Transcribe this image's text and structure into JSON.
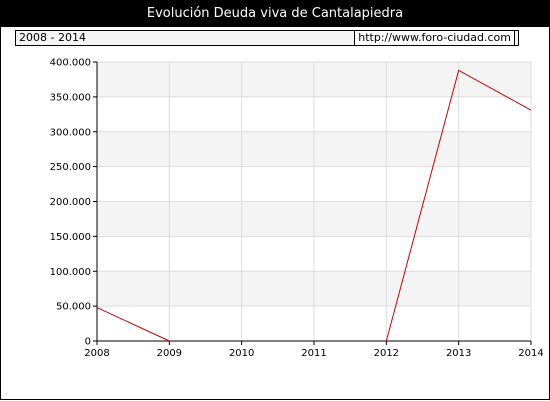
{
  "header": {
    "title": "Evolución Deuda viva de Cantalapiedra"
  },
  "info": {
    "period": "2008 - 2014",
    "source": "http://www.foro-ciudad.com"
  },
  "colors": {
    "title_bg": "#000000",
    "line": "#cc0000",
    "band": "#f4f4f4",
    "grid": "#dddddd"
  },
  "chart_data": {
    "type": "line",
    "title": "Evolución Deuda viva de Cantalapiedra",
    "xlabel": "",
    "ylabel": "",
    "categories": [
      "2008",
      "2009",
      "2010",
      "2011",
      "2012",
      "2013",
      "2014"
    ],
    "ylim": [
      0,
      400000
    ],
    "yticks": [
      0,
      50000,
      100000,
      150000,
      200000,
      250000,
      300000,
      350000,
      400000
    ],
    "ytick_labels": [
      "0",
      "50.000",
      "100.000",
      "150.000",
      "200.000",
      "250.000",
      "300.000",
      "350.000",
      "400.000"
    ],
    "grid": true,
    "series": [
      {
        "values": [
          48000,
          0,
          null,
          null,
          0,
          388000,
          331000
        ]
      }
    ]
  }
}
